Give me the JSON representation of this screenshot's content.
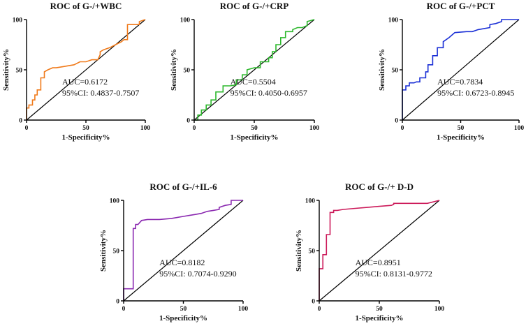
{
  "chart_data": [
    {
      "type": "line",
      "title": "ROC of G-/+WBC",
      "xlabel": "1-Specificity%",
      "ylabel": "Sensitivity%",
      "xlim": [
        0,
        100
      ],
      "ylim": [
        0,
        100
      ],
      "xticks": [
        "0",
        "50",
        "100"
      ],
      "yticks": [
        "0",
        "50",
        "100"
      ],
      "color": "#f07a1a",
      "annotations": [
        "AUC=0.6172",
        "95%CI: 0.4837-0.7507"
      ],
      "x": [
        0,
        0,
        2,
        2,
        5,
        5,
        7,
        7,
        9,
        9,
        12,
        12,
        15,
        15,
        18,
        22,
        25,
        30,
        40,
        45,
        50,
        55,
        60,
        62,
        62,
        65,
        70,
        75,
        80,
        82,
        85,
        85,
        90,
        95,
        95,
        100
      ],
      "y": [
        0,
        12,
        12,
        15,
        15,
        20,
        20,
        25,
        25,
        30,
        30,
        42,
        42,
        48,
        50,
        52,
        52,
        53,
        55,
        58,
        58,
        60,
        60,
        65,
        68,
        70,
        72,
        75,
        78,
        80,
        80,
        95,
        95,
        95,
        98,
        100
      ]
    },
    {
      "type": "line",
      "title": "ROC of G-/+CRP",
      "xlabel": "1-Specificity%",
      "ylabel": "Sensitivity%",
      "xlim": [
        0,
        100
      ],
      "ylim": [
        0,
        100
      ],
      "xticks": [
        "0",
        "50",
        "100"
      ],
      "yticks": [
        "0",
        "50",
        "100"
      ],
      "color": "#2db82d",
      "annotations": [
        "AUC=0.5504",
        "95%CI: 0.4050-0.6957"
      ],
      "x": [
        0,
        3,
        3,
        6,
        6,
        10,
        10,
        14,
        14,
        18,
        18,
        24,
        24,
        30,
        35,
        35,
        40,
        40,
        44,
        44,
        50,
        55,
        55,
        62,
        62,
        65,
        65,
        68,
        68,
        72,
        72,
        76,
        76,
        82,
        82,
        86,
        90,
        94,
        94,
        100
      ],
      "y": [
        0,
        0,
        5,
        5,
        10,
        10,
        15,
        15,
        20,
        20,
        28,
        28,
        34,
        34,
        35,
        40,
        40,
        45,
        45,
        50,
        52,
        52,
        58,
        58,
        62,
        62,
        68,
        68,
        75,
        75,
        82,
        82,
        88,
        88,
        90,
        92,
        92,
        94,
        98,
        100
      ]
    },
    {
      "type": "line",
      "title": "ROC of G-/+PCT",
      "xlabel": "1-Specificity%",
      "ylabel": "Sensitivity%",
      "xlim": [
        0,
        100
      ],
      "ylim": [
        0,
        100
      ],
      "xticks": [
        "0",
        "50",
        "100"
      ],
      "yticks": [
        "0",
        "50",
        "100"
      ],
      "color": "#1a2fd6",
      "annotations": [
        "AUC=0.7834",
        "95%CI: 0.6723-0.8945"
      ],
      "x": [
        0,
        0,
        3,
        3,
        6,
        6,
        10,
        12,
        15,
        15,
        20,
        20,
        22,
        22,
        26,
        26,
        30,
        30,
        35,
        35,
        40,
        45,
        55,
        60,
        65,
        75,
        75,
        80,
        85,
        85,
        100
      ],
      "y": [
        0,
        30,
        30,
        34,
        34,
        37,
        37,
        38,
        38,
        42,
        42,
        48,
        48,
        55,
        55,
        64,
        64,
        72,
        72,
        78,
        82,
        87,
        88,
        88,
        90,
        92,
        95,
        96,
        98,
        100,
        100
      ]
    },
    {
      "type": "line",
      "title": "ROC of G-/+IL-6",
      "xlabel": "1-Specificity%",
      "ylabel": "Sensitivity%",
      "xlim": [
        0,
        100
      ],
      "ylim": [
        0,
        100
      ],
      "xticks": [
        "0",
        "50",
        "100"
      ],
      "yticks": [
        "0",
        "50",
        "100"
      ],
      "color": "#8a28b0",
      "annotations": [
        "AUC=0.8182",
        "95%CI: 0.7074-0.9290"
      ],
      "x": [
        0,
        0,
        8,
        8,
        10,
        10,
        12,
        15,
        20,
        30,
        40,
        50,
        55,
        60,
        65,
        70,
        75,
        80,
        80,
        85,
        90,
        90,
        100
      ],
      "y": [
        0,
        12,
        12,
        72,
        72,
        76,
        76,
        80,
        81,
        81,
        82,
        84,
        85,
        86,
        87,
        89,
        90,
        91,
        93,
        95,
        96,
        100,
        100
      ]
    },
    {
      "type": "line",
      "title": "ROC of G-/+ D-D",
      "xlabel": "1-Specificity%",
      "ylabel": "Sensitivity%",
      "xlim": [
        0,
        100
      ],
      "ylim": [
        0,
        100
      ],
      "xticks": [
        "0",
        "50",
        "100"
      ],
      "yticks": [
        "0",
        "50",
        "100"
      ],
      "color": "#cc1a5a",
      "annotations": [
        "AUC=0.8951",
        "95%CI: 0.8131-0.9772"
      ],
      "x": [
        0,
        0,
        3,
        3,
        6,
        6,
        9,
        9,
        12,
        12,
        15,
        20,
        30,
        40,
        50,
        60,
        62,
        62,
        70,
        80,
        90,
        100
      ],
      "y": [
        0,
        32,
        32,
        46,
        46,
        66,
        66,
        88,
        88,
        90,
        90,
        91,
        92,
        93,
        94,
        95,
        96,
        97,
        97,
        97,
        97,
        100
      ]
    }
  ]
}
